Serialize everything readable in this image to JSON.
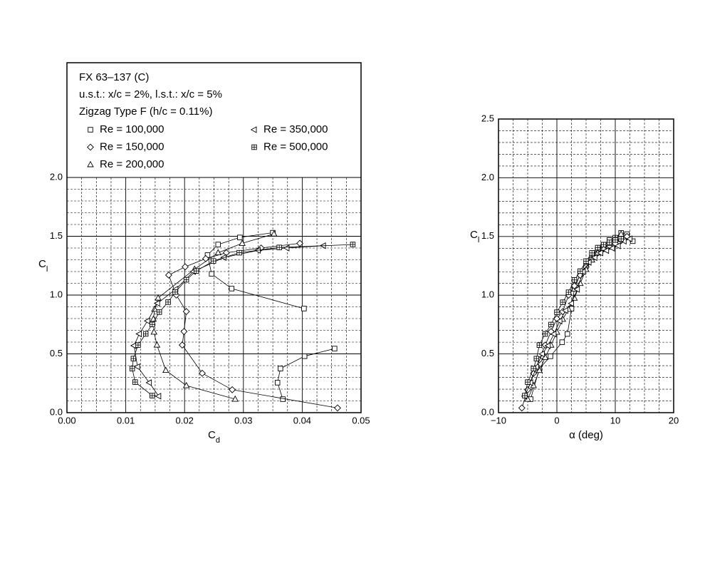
{
  "chart_data": [
    {
      "type": "line",
      "legend_title": [
        "FX 63–137 (C)",
        "u.s.t.: x/c = 2%, l.s.t.: x/c = 5%",
        "Zigzag Type F (h/c = 0.11%)"
      ],
      "xlabel": "C",
      "xlabel_sub": "d",
      "ylabel": "C",
      "ylabel_sub": "l",
      "xlim": [
        0,
        0.05
      ],
      "ylim": [
        0,
        2
      ],
      "xticks": [
        {
          "value": 0,
          "label": "0.00"
        },
        {
          "value": 0.01,
          "label": "0.01"
        },
        {
          "value": 0.02,
          "label": "0.02"
        },
        {
          "value": 0.03,
          "label": "0.03"
        },
        {
          "value": 0.04,
          "label": "0.04"
        },
        {
          "value": 0.05,
          "label": "0.05"
        }
      ],
      "yticks": [
        {
          "value": 0,
          "label": "0.0"
        },
        {
          "value": 0.5,
          "label": "0.5"
        },
        {
          "value": 1,
          "label": "1.0"
        },
        {
          "value": 1.5,
          "label": "1.5"
        },
        {
          "value": 2,
          "label": "2.0"
        }
      ],
      "grid": true,
      "minor": {
        "x": 4,
        "y": 5
      },
      "series": [
        {
          "name": "Re = 100,000",
          "marker": "square",
          "color": "#000000",
          "x": [
            0.0367,
            0.0358,
            0.0363,
            0.0404,
            0.0455,
            null,
            0.0403,
            0.028,
            0.0246,
            0.0239,
            0.0257,
            0.0294,
            0.035
          ],
          "values": [
            0.115,
            0.255,
            0.375,
            0.48,
            0.545,
            null,
            0.885,
            1.055,
            1.18,
            1.34,
            1.43,
            1.49,
            1.53
          ]
        },
        {
          "name": "Re = 150,000",
          "marker": "diamond",
          "color": "#000000",
          "x": [
            0.046,
            0.0281,
            0.023,
            0.0196,
            0.0199,
            0.0203,
            0.0186,
            0.0173,
            0.0201,
            0.0236,
            0.0271,
            0.033,
            0.0396
          ],
          "values": [
            0.04,
            0.195,
            0.335,
            0.575,
            0.69,
            0.86,
            1.0,
            1.17,
            1.24,
            1.31,
            1.36,
            1.4,
            1.44
          ]
        },
        {
          "name": "Re = 200,000",
          "marker": "triangle",
          "color": "#000000",
          "x": [
            0.0286,
            0.0203,
            0.0168,
            0.0153,
            0.0148,
            0.0147,
            0.0149,
            0.0155,
            0.0217,
            0.0257,
            0.0298,
            0.0352
          ],
          "values": [
            0.115,
            0.23,
            0.36,
            0.575,
            0.685,
            0.795,
            0.88,
            0.975,
            1.22,
            1.36,
            1.44,
            1.52
          ]
        },
        {
          "name": "Re = 350,000",
          "marker": "left-triangle",
          "color": "#000000",
          "x": [
            0.0156,
            0.014,
            0.012,
            0.0114,
            0.0123,
            0.0137,
            0.0154,
            0.0185,
            0.0215,
            0.0267,
            0.0325,
            0.0374,
            0.0436
          ],
          "values": [
            0.14,
            0.255,
            0.39,
            0.57,
            0.67,
            0.78,
            0.93,
            1.05,
            1.2,
            1.32,
            1.38,
            1.4,
            1.42
          ]
        },
        {
          "name": "Re = 500,000",
          "marker": "boxed-plus",
          "color": "#000000",
          "x": [
            0.0145,
            0.0116,
            0.0111,
            0.0113,
            0.0121,
            0.0134,
            0.0145,
            0.0157,
            0.0172,
            0.0184,
            0.0203,
            0.022,
            0.0249,
            0.0293,
            0.0361,
            0.0486
          ],
          "values": [
            0.145,
            0.26,
            0.375,
            0.46,
            0.575,
            0.67,
            0.75,
            0.855,
            0.94,
            1.025,
            1.13,
            1.205,
            1.29,
            1.36,
            1.405,
            1.43
          ]
        }
      ]
    },
    {
      "type": "line",
      "xlabel": "α (deg)",
      "ylabel": "C",
      "ylabel_sub": "l",
      "xlim": [
        -10,
        20
      ],
      "ylim": [
        0,
        2.5
      ],
      "xticks": [
        {
          "value": -10,
          "label": "−10"
        },
        0,
        10,
        20
      ],
      "yticks": [
        {
          "value": 0,
          "label": "0.0"
        },
        {
          "value": 0.5,
          "label": "0.5"
        },
        {
          "value": 1,
          "label": "1.0"
        },
        {
          "value": 1.5,
          "label": "1.5"
        },
        {
          "value": 2,
          "label": "2.0"
        },
        {
          "value": 2.5,
          "label": "2.5"
        }
      ],
      "grid": true,
      "minor": {
        "x": 4,
        "y": 5
      },
      "series": [
        {
          "marker": "square",
          "color": "#000000",
          "x": [
            -4.5,
            -3,
            -1.1,
            0.9,
            1.8,
            2.5,
            3,
            4,
            5,
            6,
            7,
            8,
            9,
            10,
            11,
            12,
            13
          ],
          "values": [
            0.115,
            0.375,
            0.48,
            0.6,
            0.67,
            0.885,
            1.055,
            1.18,
            1.25,
            1.34,
            1.39,
            1.43,
            1.47,
            1.49,
            1.53,
            1.52,
            1.46
          ]
        },
        {
          "marker": "diamond",
          "color": "#000000",
          "x": [
            -6,
            -5,
            -4,
            -3,
            -2,
            -1,
            0,
            1,
            2,
            3,
            4,
            5,
            6,
            7,
            8,
            9,
            10,
            11,
            12
          ],
          "values": [
            0.04,
            0.195,
            0.335,
            0.45,
            0.575,
            0.69,
            0.8,
            0.86,
            1.0,
            1.08,
            1.17,
            1.24,
            1.31,
            1.36,
            1.4,
            1.42,
            1.44,
            1.47,
            1.5
          ]
        },
        {
          "marker": "triangle",
          "color": "#000000",
          "x": [
            -5,
            -4,
            -3,
            -2,
            -1,
            0,
            1,
            2,
            3,
            4,
            5,
            6,
            7,
            8,
            9,
            10,
            11
          ],
          "values": [
            0.115,
            0.23,
            0.36,
            0.47,
            0.575,
            0.685,
            0.795,
            0.88,
            0.975,
            1.1,
            1.22,
            1.3,
            1.36,
            1.4,
            1.44,
            1.48,
            1.52
          ]
        },
        {
          "marker": "left-triangle",
          "color": "#000000",
          "x": [
            -5.5,
            -4.5,
            -3.5,
            -2.5,
            -1.5,
            -0.5,
            0.5,
            1.5,
            2.5,
            3.5,
            4.5,
            5.5,
            6.5,
            7.5,
            8.5,
            9.5,
            10.5,
            11.5,
            12.5
          ],
          "values": [
            0.14,
            0.255,
            0.39,
            0.5,
            0.57,
            0.67,
            0.78,
            0.87,
            0.93,
            1.05,
            1.2,
            1.28,
            1.32,
            1.36,
            1.38,
            1.4,
            1.42,
            1.46,
            1.48
          ]
        },
        {
          "marker": "boxed-plus",
          "color": "#000000",
          "x": [
            -5.5,
            -5,
            -4,
            -3.5,
            -3,
            -2,
            -1,
            0,
            1,
            2,
            3,
            4,
            5,
            6,
            7,
            8,
            9,
            10,
            11
          ],
          "values": [
            0.145,
            0.26,
            0.375,
            0.46,
            0.575,
            0.67,
            0.75,
            0.855,
            0.94,
            1.025,
            1.13,
            1.205,
            1.29,
            1.36,
            1.405,
            1.43,
            1.45,
            1.47,
            1.48
          ]
        }
      ]
    }
  ]
}
